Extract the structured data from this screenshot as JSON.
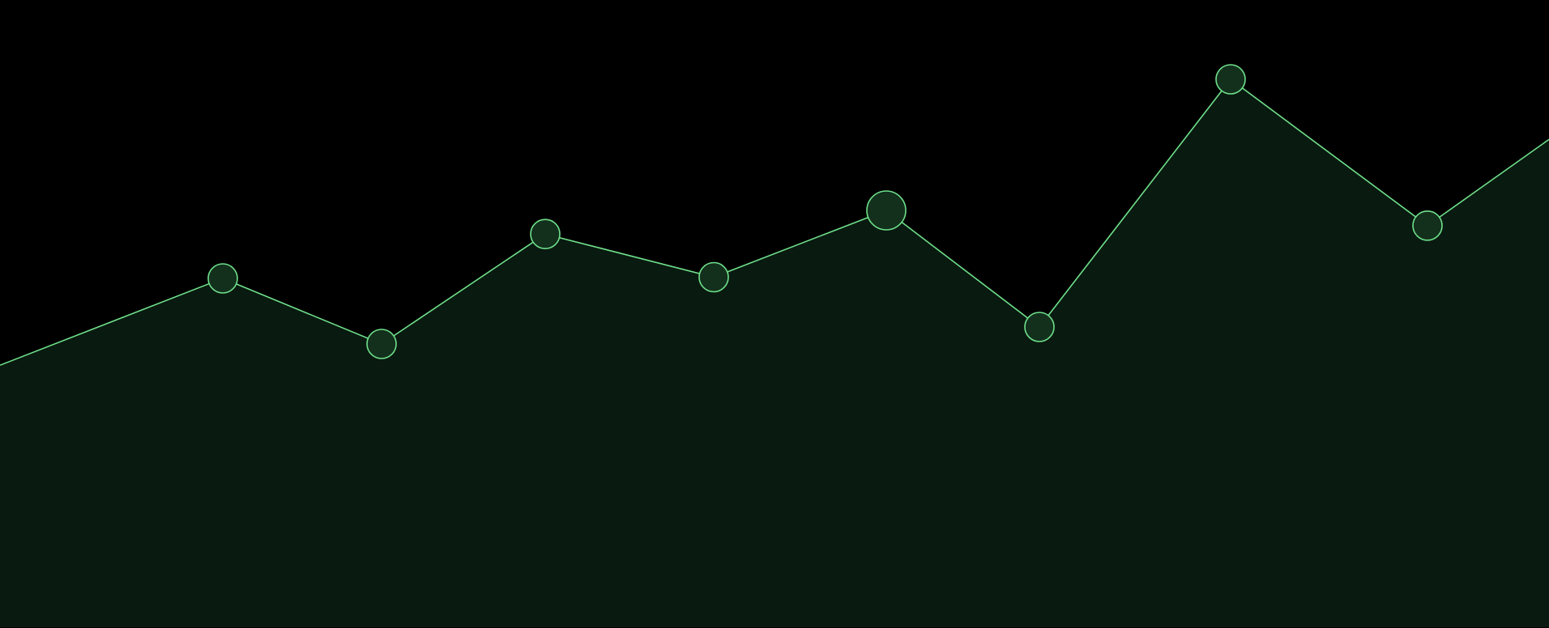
{
  "chart_data": {
    "type": "area",
    "title": "",
    "xlabel": "",
    "ylabel": "",
    "ylim": [
      0,
      100
    ],
    "grid": false,
    "legend": "none",
    "series": [
      {
        "x": [
          0,
          1,
          2,
          3,
          4,
          5,
          6,
          7,
          8,
          9
        ],
        "values": [
          43.3,
          57.6,
          46.8,
          64.9,
          57.8,
          68.8,
          49.6,
          90.4,
          66.3,
          80.5
        ],
        "markers": [
          false,
          true,
          true,
          true,
          true,
          true,
          true,
          true,
          true,
          false
        ],
        "highlight_index": 5
      }
    ],
    "colors": {
      "line": "#6ee08a",
      "area_fill": "#091a10",
      "marker_fill": "#13301d",
      "background": "#000000"
    }
  }
}
